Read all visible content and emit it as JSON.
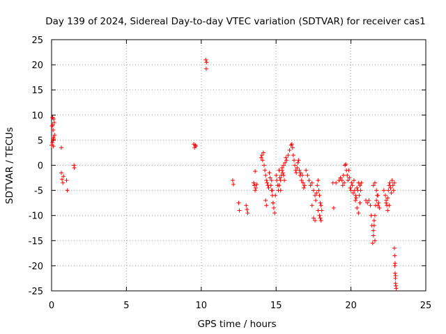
{
  "chart_data": {
    "type": "scatter",
    "title": "Day 139 of 2024, Sidereal Day-to-day VTEC variation (SDTVAR) for receiver cas1",
    "xlabel": "GPS time / hours",
    "ylabel": "SDTVAR / TECUs",
    "xlim": [
      0,
      25
    ],
    "ylim": [
      -25,
      25
    ],
    "xticks": [
      "0",
      "5",
      "10",
      "15",
      "20",
      "25"
    ],
    "yticks": [
      "25",
      "20",
      "15",
      "10",
      "5",
      "0",
      "-5",
      "-10",
      "-15",
      "-20",
      "-25"
    ],
    "grid": true,
    "marker": "+",
    "color": "#ff0000",
    "series": [
      {
        "name": "SDTVAR",
        "x": [
          0.0,
          0.02,
          0.05,
          0.08,
          0.1,
          0.12,
          0.15,
          0.18,
          0.2,
          0.05,
          0.1,
          0.15,
          0.08,
          0.12,
          0.65,
          0.65,
          0.7,
          0.75,
          0.8,
          1.0,
          1.05,
          1.5,
          1.52,
          9.5,
          9.55,
          9.6,
          9.65,
          10.3,
          10.35,
          10.33,
          12.1,
          12.15,
          12.5,
          12.55,
          13.0,
          13.05,
          13.1,
          13.5,
          13.55,
          13.6,
          13.65,
          13.7,
          13.6,
          14.0,
          14.05,
          14.1,
          14.15,
          14.2,
          14.25,
          14.3,
          14.35,
          14.4,
          14.45,
          14.5,
          14.3,
          14.35,
          14.55,
          14.6,
          14.65,
          14.7,
          14.75,
          14.8,
          14.85,
          14.9,
          14.95,
          14.7,
          14.75,
          14.8,
          15.0,
          15.05,
          15.1,
          15.15,
          15.2,
          15.25,
          15.3,
          15.35,
          15.4,
          15.45,
          15.5,
          15.55,
          15.6,
          15.65,
          15.7,
          15.2,
          15.3,
          15.4,
          15.5,
          15.8,
          15.9,
          16.0,
          16.05,
          16.1,
          16.15,
          16.2,
          16.25,
          16.3,
          16.35,
          16.4,
          16.45,
          16.5,
          16.55,
          16.6,
          16.65,
          16.7,
          16.75,
          16.8,
          16.85,
          16.9,
          17.0,
          17.1,
          17.2,
          17.3,
          17.4,
          17.5,
          17.6,
          17.65,
          17.7,
          17.75,
          17.8,
          17.85,
          17.9,
          17.95,
          18.0,
          18.05,
          17.4,
          17.5,
          17.6,
          17.8,
          17.9,
          18.0,
          17.95,
          18.8,
          18.85,
          19.0,
          19.2,
          19.3,
          19.4,
          19.45,
          19.5,
          19.55,
          19.6,
          19.65,
          19.7,
          19.75,
          19.8,
          19.85,
          19.9,
          19.95,
          20.0,
          20.05,
          20.1,
          20.15,
          20.2,
          20.25,
          20.3,
          20.35,
          20.4,
          20.45,
          20.5,
          20.55,
          20.6,
          20.65,
          20.7,
          20.3,
          20.4,
          20.5,
          20.6,
          21.0,
          21.1,
          21.2,
          21.3,
          21.35,
          21.4,
          21.45,
          21.5,
          21.55,
          21.6,
          21.65,
          21.7,
          21.75,
          21.8,
          21.85,
          21.9,
          21.5,
          21.6,
          21.7,
          21.8,
          21.5,
          21.6,
          21.55,
          22.2,
          22.3,
          22.35,
          22.4,
          22.45,
          22.5,
          22.55,
          22.6,
          22.65,
          22.7,
          22.75,
          22.8,
          22.85,
          22.9,
          22.35,
          22.45,
          22.55,
          22.9,
          22.92,
          22.93,
          22.95,
          22.97,
          22.98,
          23.0,
          23.02,
          22.95,
          22.98
        ],
        "y": [
          4,
          7.8,
          9.5,
          9.5,
          5,
          5.5,
          9.2,
          8.5,
          6,
          4.5,
          7,
          5.2,
          8,
          3.8,
          3.5,
          -1.5,
          -2.8,
          -3.5,
          -2.2,
          -3,
          -5,
          0,
          -0.5,
          4.2,
          3.5,
          4,
          3.8,
          21,
          20.5,
          19.2,
          -3,
          -3.8,
          -7.5,
          -9,
          -8,
          -8.8,
          -9.5,
          -3.5,
          -4,
          -5,
          -4.5,
          -3.8,
          -1.2,
          1.5,
          2,
          1,
          2.5,
          0,
          -1,
          -2,
          -3,
          -3.5,
          -4,
          -4.5,
          -7,
          -8,
          -1.5,
          -2.5,
          -4,
          -5,
          -6,
          -7.5,
          -8.5,
          -9.5,
          -6,
          -3,
          -5,
          -7.5,
          -2,
          -3,
          -4,
          -5,
          -1,
          -2.5,
          -3,
          -2,
          -1,
          -1.5,
          0,
          -3,
          0.5,
          1.5,
          1,
          -4,
          -5,
          -0.5,
          -2,
          2,
          3,
          4,
          4.2,
          3.5,
          2,
          1,
          0,
          -1,
          -1.5,
          -0.5,
          0.5,
          1,
          -1,
          -2,
          -1.5,
          -3,
          -2,
          -3.5,
          -4.5,
          -4,
          -1,
          -2,
          -3,
          -4,
          -3.5,
          -5,
          -6,
          -7,
          -5.5,
          -4,
          -3,
          -5,
          -6,
          -7.5,
          -8,
          -9,
          -8,
          -10.5,
          -11,
          -9,
          -10,
          -11,
          -10.5,
          -3.5,
          -8.5,
          -3.5,
          -3,
          -2.5,
          -3,
          -4,
          -2,
          -3.5,
          0,
          0.2,
          -1,
          -2,
          -3,
          -1,
          -2.5,
          -4.5,
          -5,
          -3.5,
          -4,
          -5.5,
          -3,
          -5,
          -6,
          -6.5,
          -4.5,
          -5,
          -3.5,
          -6,
          -4,
          -5,
          -3.5,
          -7,
          -8.5,
          -9.5,
          -7.5,
          -7,
          -7.5,
          -7,
          -8,
          -10,
          -12,
          -15.5,
          -14,
          -12,
          -10,
          -8,
          -7,
          -6,
          -8,
          -7.5,
          -8.5,
          -4,
          -3.5,
          -5,
          -6,
          -13,
          -15,
          -11,
          -5,
          -6,
          -7,
          -8,
          -9,
          -5,
          -4,
          -3.5,
          -4.5,
          -5.5,
          -3,
          -4,
          -5,
          -3.5,
          -7.5,
          -6.5,
          -8,
          -16.5,
          -18,
          -20,
          -21.5,
          -22.5,
          -23.5,
          -24,
          -24.5,
          -19.5,
          -22
        ]
      }
    ]
  }
}
